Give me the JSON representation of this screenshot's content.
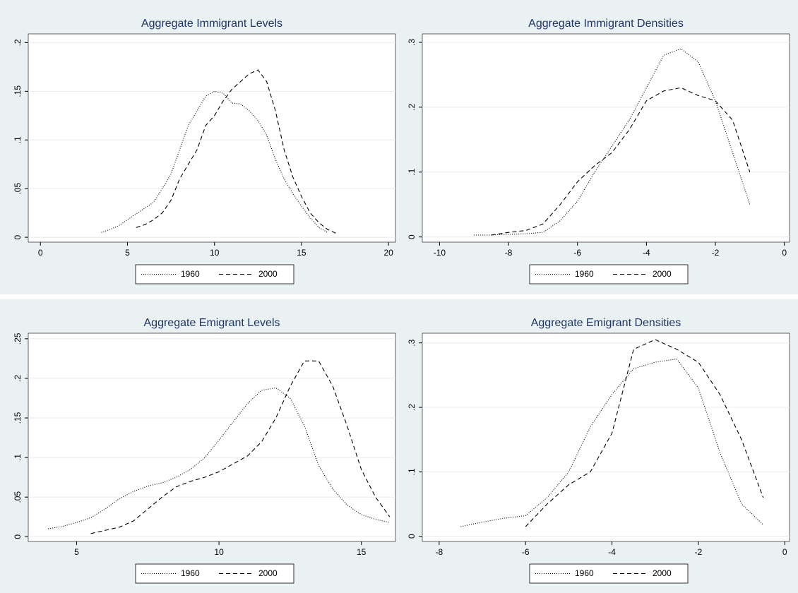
{
  "chart_data": [
    {
      "type": "line",
      "title": "Aggregate Immigrant Levels",
      "x": [
        3.5,
        4,
        4.5,
        5,
        5.5,
        6,
        6.5,
        7,
        7.5,
        8,
        8.5,
        9,
        9.5,
        10,
        10.5,
        11,
        11.5,
        12,
        12.5,
        13,
        13.5,
        14,
        14.5,
        15,
        15.5,
        16,
        16.5,
        17,
        17.5
      ],
      "series": [
        {
          "name": "1960",
          "color": "#000000",
          "style": "dotted",
          "values": [
            0.005,
            0.008,
            0.012,
            0.018,
            0.024,
            0.03,
            0.036,
            0.05,
            0.065,
            0.09,
            0.115,
            0.13,
            0.145,
            0.15,
            0.148,
            0.138,
            0.137,
            0.13,
            0.12,
            0.105,
            0.08,
            0.06,
            0.045,
            0.032,
            0.02,
            0.01,
            0.005,
            null,
            null
          ]
        },
        {
          "name": "2000",
          "color": "#000000",
          "style": "dashed",
          "values": [
            null,
            null,
            null,
            null,
            0.01,
            0.013,
            0.018,
            0.025,
            0.038,
            0.06,
            0.075,
            0.09,
            0.115,
            0.125,
            0.14,
            0.152,
            0.16,
            0.168,
            0.172,
            0.16,
            0.13,
            0.09,
            0.062,
            0.042,
            0.025,
            0.015,
            0.008,
            0.004,
            null
          ]
        }
      ],
      "xlim": [
        -0.7,
        20.4
      ],
      "xticks": [
        0,
        5,
        10,
        15,
        20
      ],
      "ylim": [
        -0.005,
        0.209
      ],
      "yticks": [
        0,
        {
          "value": 0.05,
          "label": ".05"
        },
        {
          "value": 0.1,
          "label": ".1"
        },
        {
          "value": 0.15,
          "label": ".15"
        },
        {
          "value": 0.2,
          "label": ".2"
        }
      ],
      "grid": true
    },
    {
      "type": "line",
      "title": "Aggregate Immigrant Densities",
      "x": [
        -9,
        -8.5,
        -8,
        -7.5,
        -7,
        -6.5,
        -6,
        -5.5,
        -5,
        -4.5,
        -4,
        -3.5,
        -3,
        -2.5,
        -2,
        -1.5,
        -1
      ],
      "series": [
        {
          "name": "1960",
          "color": "#000000",
          "style": "dotted",
          "values": [
            0.003,
            0.003,
            0.004,
            0.005,
            0.007,
            0.025,
            0.055,
            0.1,
            0.14,
            0.18,
            0.23,
            0.28,
            0.29,
            0.27,
            0.21,
            0.13,
            0.05
          ]
        },
        {
          "name": "2000",
          "color": "#000000",
          "style": "dashed",
          "values": [
            null,
            0.003,
            0.007,
            0.01,
            0.02,
            0.05,
            0.085,
            0.11,
            0.13,
            0.165,
            0.21,
            0.225,
            0.23,
            0.218,
            0.21,
            0.18,
            0.1
          ]
        }
      ],
      "xlim": [
        -10.5,
        0.15
      ],
      "xticks": [
        -10,
        -8,
        -6,
        -4,
        -2,
        0
      ],
      "ylim": [
        -0.008,
        0.313
      ],
      "yticks": [
        0,
        {
          "value": 0.1,
          "label": ".1"
        },
        {
          "value": 0.2,
          "label": ".2"
        },
        {
          "value": 0.3,
          "label": ".3"
        }
      ],
      "grid": true
    },
    {
      "type": "line",
      "title": "Aggregate Emigrant Levels",
      "x": [
        4,
        4.5,
        5,
        5.5,
        6,
        6.5,
        7,
        7.5,
        8,
        8.5,
        9,
        9.5,
        10,
        10.5,
        11,
        11.5,
        12,
        12.5,
        13,
        13.5,
        14,
        14.5,
        15,
        15.5,
        16
      ],
      "series": [
        {
          "name": "1960",
          "color": "#000000",
          "style": "dotted",
          "values": [
            0.01,
            0.013,
            0.018,
            0.024,
            0.035,
            0.048,
            0.057,
            0.064,
            0.068,
            0.075,
            0.085,
            0.1,
            0.122,
            0.145,
            0.168,
            0.185,
            0.188,
            0.175,
            0.14,
            0.09,
            0.06,
            0.04,
            0.028,
            0.022,
            0.018
          ]
        },
        {
          "name": "2000",
          "color": "#000000",
          "style": "dashed",
          "values": [
            null,
            null,
            null,
            0.004,
            0.008,
            0.012,
            0.02,
            0.035,
            0.05,
            0.063,
            0.07,
            0.075,
            0.082,
            0.092,
            0.102,
            0.12,
            0.15,
            0.19,
            0.222,
            0.222,
            0.19,
            0.14,
            0.085,
            0.05,
            0.025
          ]
        }
      ],
      "xlim": [
        3.3,
        16.2
      ],
      "xticks": [
        5,
        10,
        15
      ],
      "ylim": [
        -0.006,
        0.257
      ],
      "yticks": [
        0,
        {
          "value": 0.05,
          "label": ".05"
        },
        {
          "value": 0.1,
          "label": ".1"
        },
        {
          "value": 0.15,
          "label": ".15"
        },
        {
          "value": 0.2,
          "label": ".2"
        },
        {
          "value": 0.25,
          "label": ".25"
        }
      ],
      "grid": true
    },
    {
      "type": "line",
      "title": "Aggregate Emigrant Densities",
      "x": [
        -8,
        -7.5,
        -7,
        -6.5,
        -6,
        -5.5,
        -5,
        -4.5,
        -4,
        -3.5,
        -3,
        -2.5,
        -2,
        -1.5,
        -1,
        -0.5
      ],
      "series": [
        {
          "name": "1960",
          "color": "#000000",
          "style": "dotted",
          "values": [
            null,
            0.015,
            0.022,
            0.028,
            0.032,
            0.06,
            0.1,
            0.17,
            0.22,
            0.26,
            0.27,
            0.275,
            0.23,
            0.13,
            0.05,
            0.018
          ]
        },
        {
          "name": "2000",
          "color": "#000000",
          "style": "dashed",
          "values": [
            null,
            null,
            null,
            null,
            0.015,
            0.05,
            0.08,
            0.1,
            0.16,
            0.29,
            0.305,
            0.29,
            0.27,
            0.22,
            0.15,
            0.06
          ]
        }
      ],
      "xlim": [
        -8.39,
        0.11
      ],
      "xticks": [
        -8,
        -6,
        -4,
        -2,
        0
      ],
      "ylim": [
        -0.008,
        0.315
      ],
      "yticks": [
        0,
        {
          "value": 0.1,
          "label": ".1"
        },
        {
          "value": 0.2,
          "label": ".2"
        },
        {
          "value": 0.3,
          "label": ".3"
        }
      ],
      "grid": true
    }
  ]
}
